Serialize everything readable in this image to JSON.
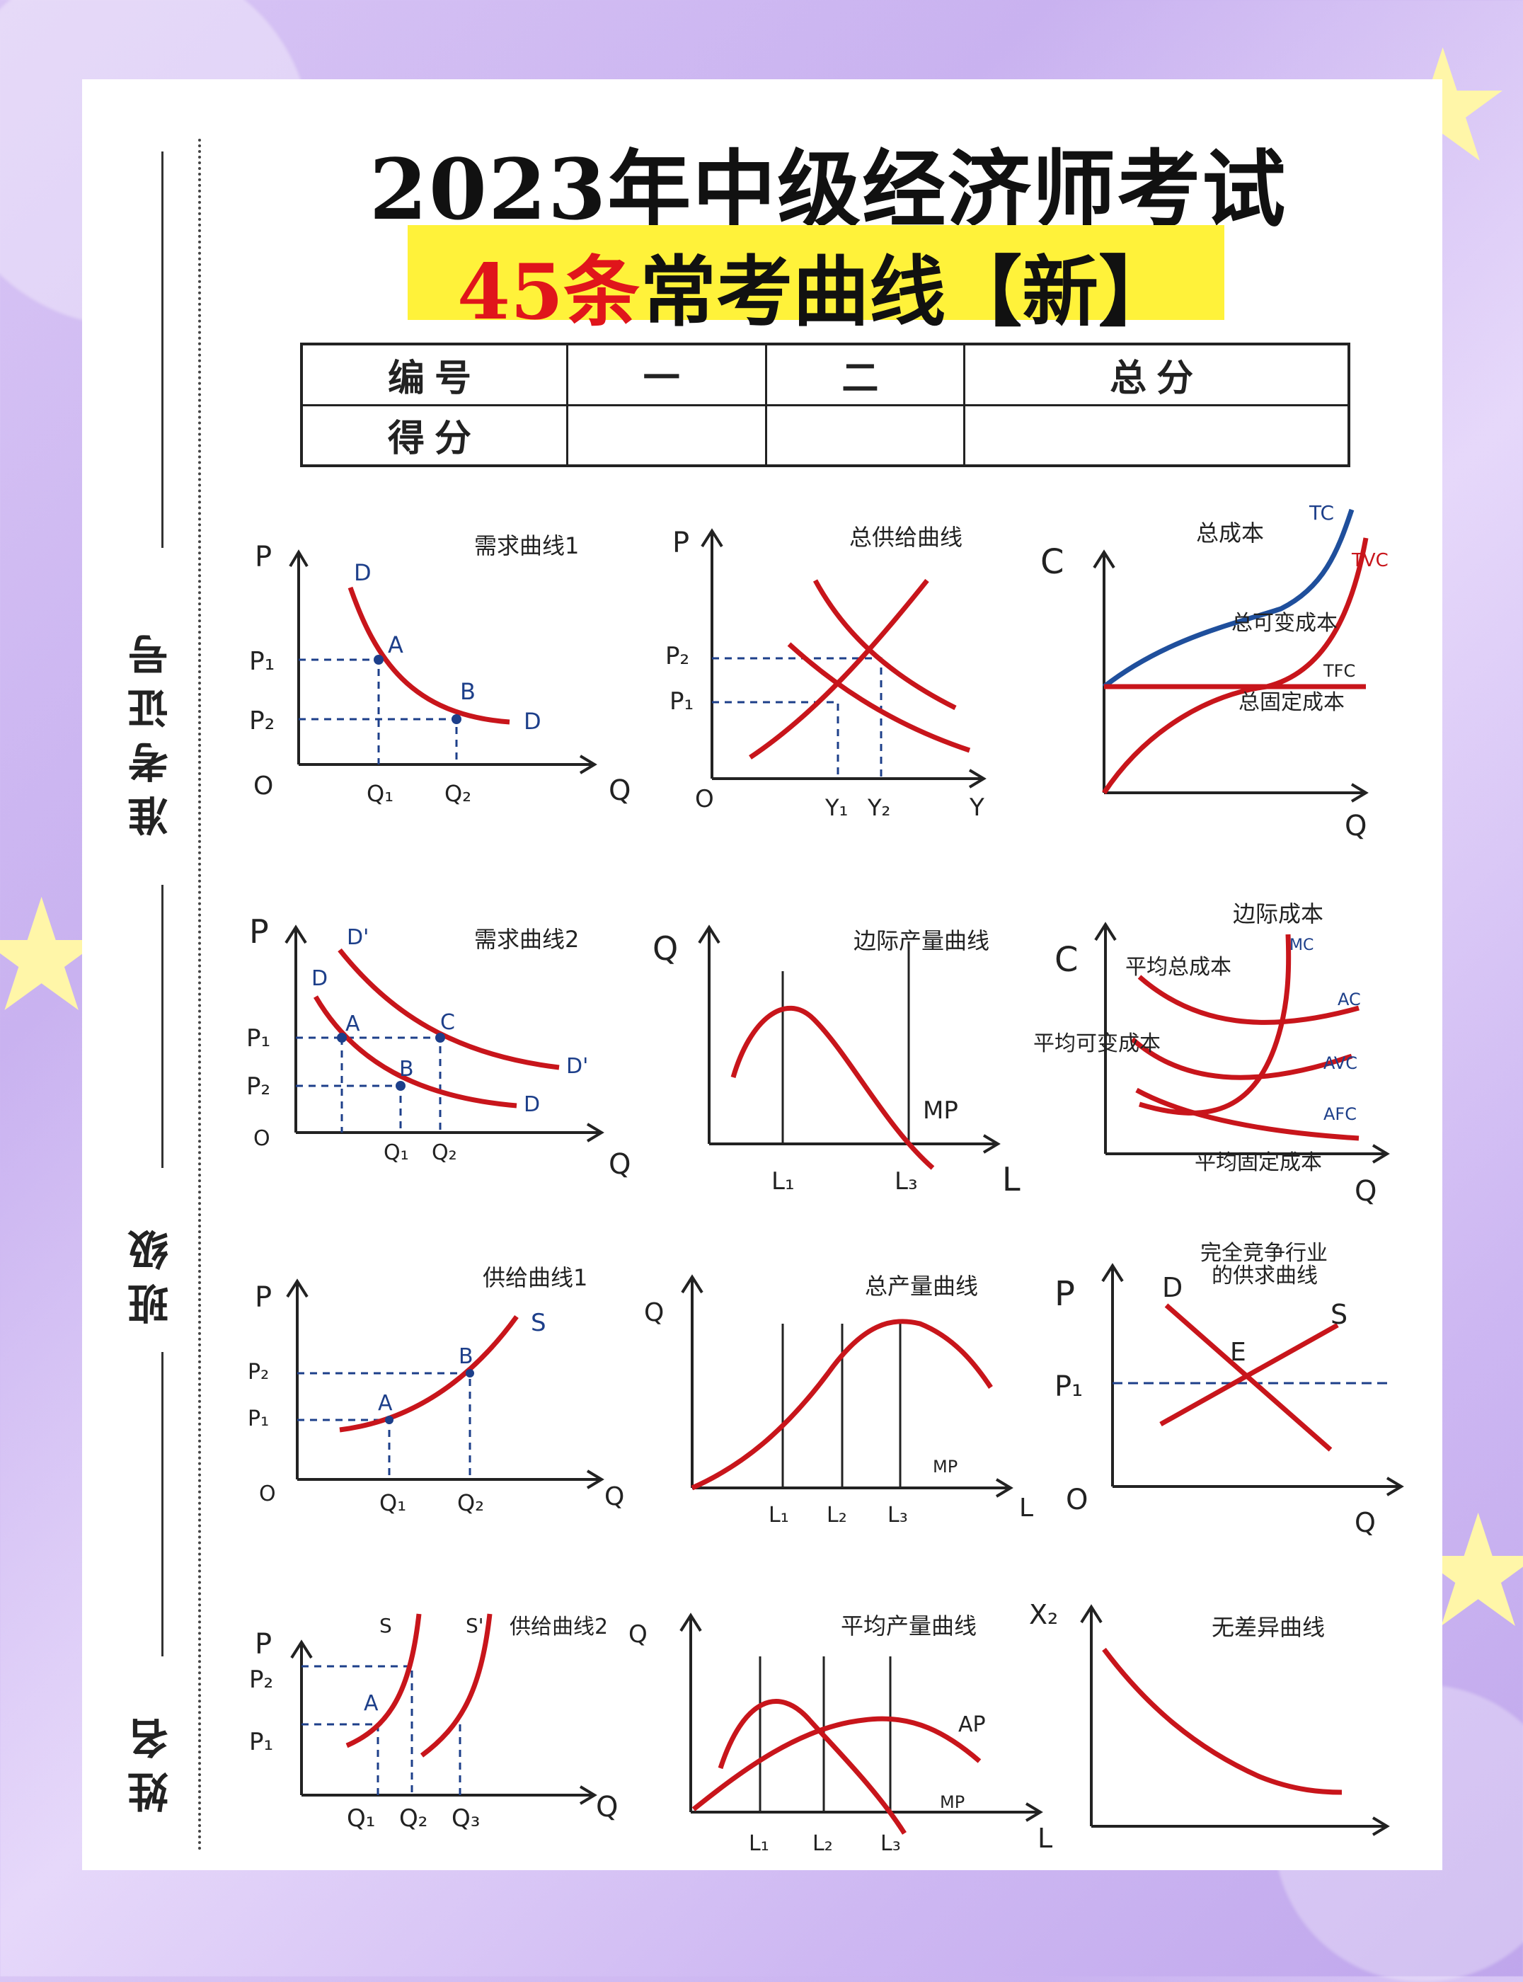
{
  "title": "2023年中级经济师考试",
  "subtitle": {
    "number": "45条",
    "text": "常考曲线【新】"
  },
  "sidebar": {
    "label1": "准考证号",
    "label2": "班级",
    "label3": "姓名"
  },
  "score_table": {
    "row1": [
      "编号",
      "一",
      "二",
      "总分"
    ],
    "row2": [
      "得分",
      "",
      "",
      ""
    ]
  },
  "colors": {
    "curve_red": "#c8151b",
    "axis": "#222222",
    "guide_blue": "#1d3f8a",
    "highlight": "#fff23a"
  },
  "panels": {
    "p1": {
      "title": "需求曲线1",
      "labels": [
        "P",
        "D",
        "A",
        "B",
        "D",
        "P₁",
        "P₂",
        "O",
        "Q₁",
        "Q₂",
        "Q"
      ]
    },
    "p2": {
      "title": "总供给曲线",
      "labels": [
        "P",
        "P₂",
        "P₁",
        "O",
        "Y₁",
        "Y₂",
        "Y"
      ]
    },
    "p3": {
      "title": "总成本",
      "labels": [
        "C",
        "TC",
        "TVC",
        "总可变成本",
        "TFC",
        "总固定成本",
        "Q"
      ]
    },
    "p4": {
      "title": "需求曲线2",
      "labels": [
        "P",
        "D'",
        "D",
        "A",
        "C",
        "B",
        "D'",
        "D",
        "P₁",
        "P₂",
        "O",
        "Q₁",
        "Q₂",
        "Q"
      ]
    },
    "p5": {
      "title": "边际产量曲线",
      "labels": [
        "Q",
        "MP",
        "L₁",
        "L₃",
        "L"
      ]
    },
    "p6": {
      "title": "边际成本",
      "labels": [
        "C",
        "MC",
        "平均总成本",
        "AC",
        "平均可变成本",
        "AVC",
        "AFC",
        "平均固定成本",
        "Q"
      ]
    },
    "p7": {
      "title": "供给曲线1",
      "labels": [
        "P",
        "S",
        "B",
        "A",
        "P₂",
        "P₁",
        "O",
        "Q₁",
        "Q₂",
        "Q"
      ]
    },
    "p8": {
      "title": "总产量曲线",
      "labels": [
        "Q",
        "MP",
        "L₁",
        "L₂",
        "L₃",
        "L"
      ]
    },
    "p9": {
      "title": "完全竞争行业",
      "title2": "的供求曲线",
      "labels": [
        "P",
        "D",
        "E",
        "S",
        "P₁",
        "O",
        "Q"
      ]
    },
    "p10": {
      "title": "供给曲线2",
      "labels": [
        "S",
        "S'",
        "P",
        "P₂",
        "A",
        "P₁",
        "Q₁",
        "Q₂",
        "Q₃",
        "Q"
      ]
    },
    "p11": {
      "title": "平均产量曲线",
      "labels": [
        "Q",
        "AP",
        "MP",
        "L₁",
        "L₂",
        "L₃",
        "L"
      ]
    },
    "p12": {
      "title": "无差异曲线",
      "labels": [
        "X₂"
      ]
    }
  }
}
